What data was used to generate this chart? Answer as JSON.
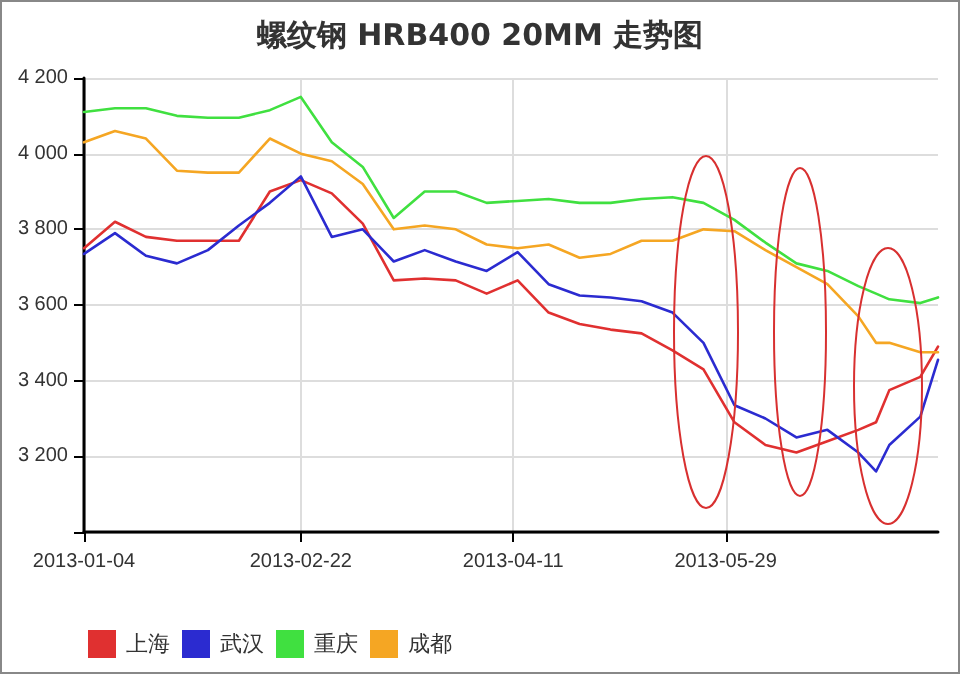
{
  "chart_data": {
    "type": "line",
    "title": "螺纹钢 HRB400 20MM 走势图",
    "x": [
      "2013-01-04",
      "2013-01-11",
      "2013-01-18",
      "2013-01-25",
      "2013-02-01",
      "2013-02-08",
      "2013-02-15",
      "2013-02-22",
      "2013-03-01",
      "2013-03-08",
      "2013-03-15",
      "2013-03-22",
      "2013-03-29",
      "2013-04-05",
      "2013-04-12",
      "2013-04-19",
      "2013-04-26",
      "2013-05-03",
      "2013-05-10",
      "2013-05-17",
      "2013-05-24",
      "2013-05-31",
      "2013-06-07",
      "2013-06-14",
      "2013-06-21",
      "2013-06-28",
      "2013-07-02",
      "2013-07-05",
      "2013-07-12",
      "2013-07-16"
    ],
    "series": [
      {
        "name": "上海",
        "color": "#e03030",
        "values": [
          3750,
          3820,
          3780,
          3770,
          3770,
          3770,
          3900,
          3930,
          3895,
          3815,
          3665,
          3670,
          3665,
          3630,
          3665,
          3580,
          3550,
          3535,
          3525,
          3480,
          3430,
          3290,
          3230,
          3210,
          3240,
          3270,
          3290,
          3375,
          3410,
          3490
        ]
      },
      {
        "name": "武汉",
        "color": "#2b2bd0",
        "values": [
          3735,
          3790,
          3730,
          3710,
          3745,
          3810,
          3870,
          3940,
          3780,
          3800,
          3715,
          3745,
          3715,
          3690,
          3740,
          3655,
          3625,
          3620,
          3610,
          3580,
          3500,
          3335,
          3300,
          3250,
          3270,
          3210,
          3160,
          3230,
          3305,
          3455
        ]
      },
      {
        "name": "重庆",
        "color": "#40e040",
        "values": [
          4110,
          4120,
          4120,
          4100,
          4095,
          4095,
          4115,
          4150,
          4030,
          3965,
          3830,
          3900,
          3900,
          3870,
          3875,
          3880,
          3870,
          3870,
          3880,
          3885,
          3870,
          3825,
          3765,
          3710,
          3690,
          3650,
          3630,
          3615,
          3605,
          3620
        ]
      },
      {
        "name": "成都",
        "color": "#f5a623",
        "values": [
          4030,
          4060,
          4040,
          3955,
          3950,
          3950,
          4040,
          4000,
          3980,
          3920,
          3800,
          3810,
          3800,
          3760,
          3750,
          3760,
          3725,
          3735,
          3770,
          3770,
          3800,
          3795,
          3745,
          3700,
          3655,
          3570,
          3500,
          3500,
          3475,
          3475
        ]
      }
    ],
    "xlim": [
      "2013-01-04",
      "2013-07-16"
    ],
    "xticks": [
      "2013-01-04",
      "2013-02-22",
      "2013-04-11",
      "2013-05-29"
    ],
    "ylim": [
      3000,
      4200
    ],
    "yticks": [
      {
        "value": 3000,
        "label": null
      },
      {
        "value": 3200,
        "label": "3 200"
      },
      {
        "value": 3400,
        "label": "3 400"
      },
      {
        "value": 3600,
        "label": "3 600"
      },
      {
        "value": 3800,
        "label": "3 800"
      },
      {
        "value": 4000,
        "label": "4 000"
      },
      {
        "value": 4200,
        "label": "4 200"
      }
    ],
    "grid": true,
    "legend": "bottom",
    "marker": "none",
    "line_style": "solid"
  }
}
